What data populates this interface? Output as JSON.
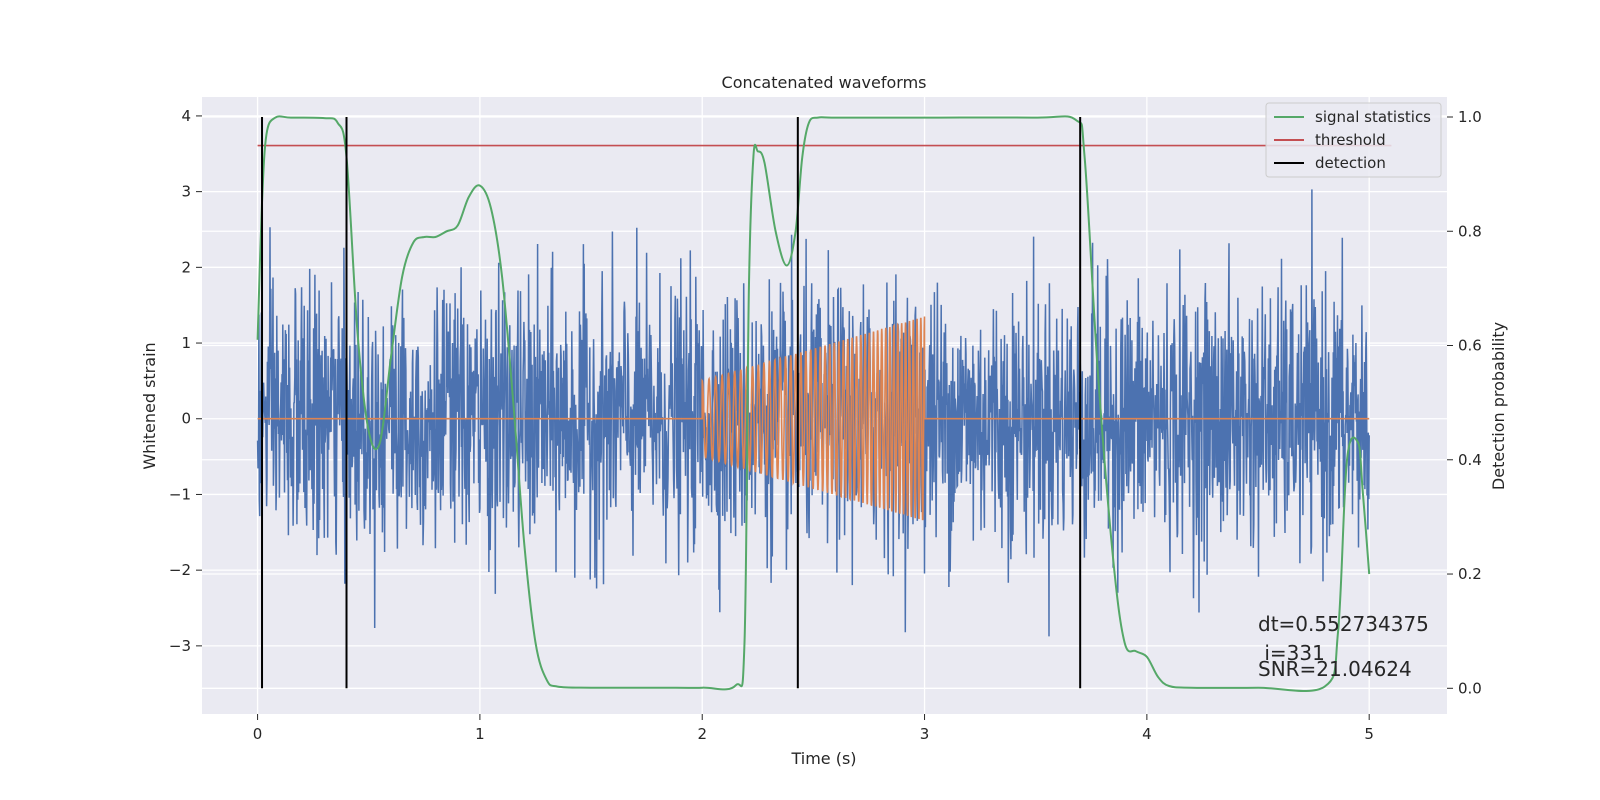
{
  "chart_data": {
    "type": "line",
    "title": "Concatenated waveforms",
    "xlabel": "Time (s)",
    "ylabel": "Whitened strain",
    "y2label": "Detection probability",
    "xlim": [
      -0.25,
      5.35
    ],
    "ylim": [
      -3.9,
      4.25
    ],
    "y2lim": [
      -0.045,
      1.035
    ],
    "xticks": [
      0,
      1,
      2,
      3,
      4,
      5
    ],
    "yticks": [
      -3,
      -2,
      -1,
      0,
      1,
      2,
      3,
      4
    ],
    "yticklabels": [
      "−3",
      "−2",
      "−1",
      "0",
      "1",
      "2",
      "3",
      "4"
    ],
    "y2ticks": [
      0.0,
      0.2,
      0.4,
      0.6,
      0.8,
      1.0
    ],
    "y2ticklabels": [
      "0.0",
      "0.2",
      "0.4",
      "0.6",
      "0.8",
      "1.0"
    ],
    "grid": true,
    "legend_position": "top-right",
    "colors": {
      "strain": "#4c72b0",
      "injected": "#dd8452",
      "signal_statistics": "#55a868",
      "threshold": "#c44e52",
      "detection": "#000000",
      "plot_background": "#eaeaf2",
      "grid": "#ffffff"
    },
    "series": [
      {
        "name": "signal statistics",
        "axis": "right",
        "x": [
          0,
          0.02,
          0.04,
          0.08,
          0.15,
          0.3,
          0.36,
          0.4,
          0.45,
          0.5,
          0.55,
          0.6,
          0.65,
          0.7,
          0.75,
          0.8,
          0.85,
          0.9,
          0.95,
          1.0,
          1.05,
          1.1,
          1.15,
          1.2,
          1.25,
          1.3,
          1.35,
          1.5,
          1.8,
          2.0,
          2.15,
          2.19,
          2.21,
          2.23,
          2.25,
          2.28,
          2.33,
          2.38,
          2.42,
          2.45,
          2.48,
          2.52,
          2.6,
          3.0,
          3.5,
          3.68,
          3.72,
          3.78,
          3.85,
          3.9,
          3.95,
          4.0,
          4.05,
          4.1,
          4.2,
          4.5,
          4.8,
          4.86,
          4.9,
          4.95,
          4.97,
          5.0
        ],
        "values": [
          0.61,
          0.85,
          0.97,
          0.999,
          0.999,
          0.998,
          0.99,
          0.93,
          0.62,
          0.45,
          0.43,
          0.58,
          0.72,
          0.78,
          0.79,
          0.79,
          0.8,
          0.81,
          0.86,
          0.88,
          0.84,
          0.72,
          0.5,
          0.25,
          0.08,
          0.015,
          0.003,
          0.001,
          0.001,
          0.001,
          0.005,
          0.08,
          0.7,
          0.93,
          0.94,
          0.92,
          0.8,
          0.74,
          0.8,
          0.93,
          0.99,
          0.999,
          0.999,
          0.999,
          0.999,
          0.995,
          0.93,
          0.55,
          0.22,
          0.08,
          0.065,
          0.055,
          0.02,
          0.004,
          0.001,
          0.001,
          0.003,
          0.1,
          0.4,
          0.43,
          0.35,
          0.2
        ]
      },
      {
        "name": "threshold",
        "axis": "right",
        "x": [
          0,
          5.1
        ],
        "values": [
          0.95,
          0.95
        ]
      },
      {
        "name": "detection",
        "axis": "right",
        "vlines": [
          0.02,
          0.4,
          2.43,
          3.7
        ],
        "ymin": 0.0,
        "ymax": 1.0
      },
      {
        "axis": "left",
        "style": "noise",
        "x_range": [
          0,
          5
        ],
        "std": 0.85
      },
      {
        "axis": "left",
        "style": "chirp",
        "x_range": [
          2,
          3
        ],
        "amplitude_start": 0.5,
        "amplitude_end": 1.35,
        "cycles": 46
      }
    ],
    "annotations": [
      "dt=0.552734375",
      " i=331",
      "SNR=21.04624"
    ]
  }
}
